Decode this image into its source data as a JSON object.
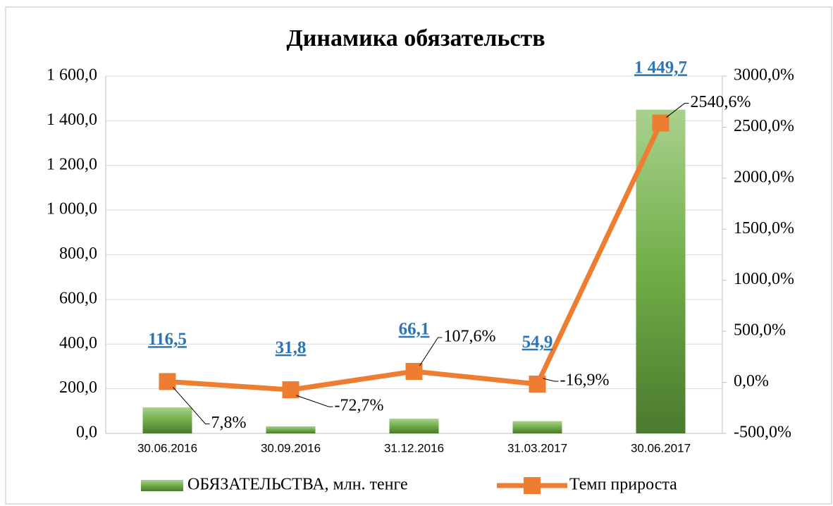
{
  "chart_data": {
    "type": "bar",
    "title": "Динамика обязательств",
    "categories": [
      "30.06.2016",
      "30.09.2016",
      "31.12.2016",
      "31.03.2017",
      "30.06.2017"
    ],
    "series": [
      {
        "name": "ОБЯЗАТЕЛЬСТВА, млн. тенге",
        "type": "bar",
        "color": "#70ad47",
        "values": [
          116.5,
          31.8,
          66.1,
          54.9,
          1449.7
        ],
        "value_labels": [
          "116,5",
          "31,8",
          "66,1",
          "54,9",
          "1 449,7"
        ]
      },
      {
        "name": "Темп прироста",
        "type": "line",
        "axis": "y2",
        "color": "#ed7d31",
        "values": [
          7.8,
          -72.7,
          107.6,
          -16.9,
          2540.6
        ],
        "value_labels": [
          "7,8%",
          "-72,7%",
          "107,6%",
          "-16,9%",
          "2540,6%"
        ]
      }
    ],
    "ylim": [
      0,
      1600
    ],
    "yticks": [
      {
        "value": 0,
        "label": "0,0"
      },
      {
        "value": 200,
        "label": "200,0"
      },
      {
        "value": 400,
        "label": "400,0"
      },
      {
        "value": 600,
        "label": "600,0"
      },
      {
        "value": 800,
        "label": "800,0"
      },
      {
        "value": 1000,
        "label": "1 000,0"
      },
      {
        "value": 1200,
        "label": "1 200,0"
      },
      {
        "value": 1400,
        "label": "1 400,0"
      },
      {
        "value": 1600,
        "label": "1 600,0"
      }
    ],
    "y2lim": [
      -500,
      3000
    ],
    "y2ticks": [
      {
        "value": -500,
        "label": "-500,0%"
      },
      {
        "value": 0,
        "label": "0,0%"
      },
      {
        "value": 500,
        "label": "500,0%"
      },
      {
        "value": 1000,
        "label": "1000,0%"
      },
      {
        "value": 1500,
        "label": "1500,0%"
      },
      {
        "value": 2000,
        "label": "2000,0%"
      },
      {
        "value": 2500,
        "label": "2500,0%"
      },
      {
        "value": 3000,
        "label": "3000,0%"
      }
    ],
    "grid": true
  }
}
